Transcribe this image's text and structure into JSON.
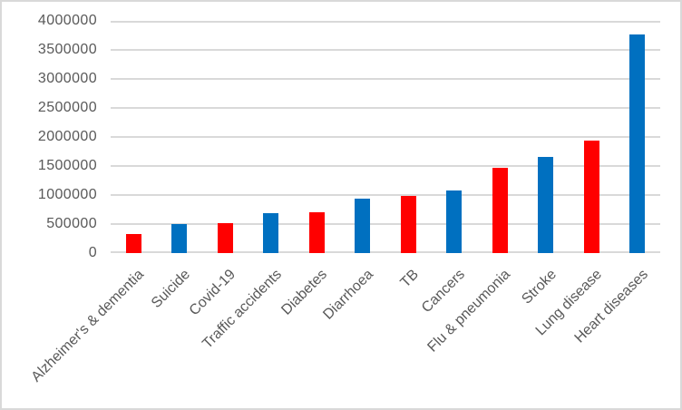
{
  "figure": {
    "background": "#FFFFFF",
    "border_color": "#D9D9D9"
  },
  "chart_data": {
    "type": "bar",
    "categories": [
      "Alzheimer's & dementia",
      "Suicide",
      "Covid-19",
      "Traffic accidents",
      "Diabetes",
      "Diarrhoea",
      "TB",
      "Cancers",
      "Flu & pneumonia",
      "Stroke",
      "Lung disease",
      "Heart diseases"
    ],
    "values": [
      330000,
      500000,
      510000,
      680000,
      700000,
      930000,
      980000,
      1080000,
      1470000,
      1650000,
      1930000,
      3770000
    ],
    "bar_colors": [
      "#FF0000",
      "#0070C0",
      "#FF0000",
      "#0070C0",
      "#FF0000",
      "#0070C0",
      "#FF0000",
      "#0070C0",
      "#FF0000",
      "#0070C0",
      "#FF0000",
      "#0070C0"
    ],
    "series_palette": {
      "red": "#FF0000",
      "blue": "#0070C0"
    },
    "ylim": [
      0,
      4000000
    ],
    "ytick_step": 500000,
    "yticks": [
      "0",
      "500000",
      "1000000",
      "1500000",
      "2000000",
      "2500000",
      "3000000",
      "3500000",
      "4000000"
    ],
    "grid": true,
    "gridline_color": "#D9D9D9",
    "tick_label_color": "#595959",
    "x_label_rotation_deg": 45,
    "legend_position": "none"
  }
}
